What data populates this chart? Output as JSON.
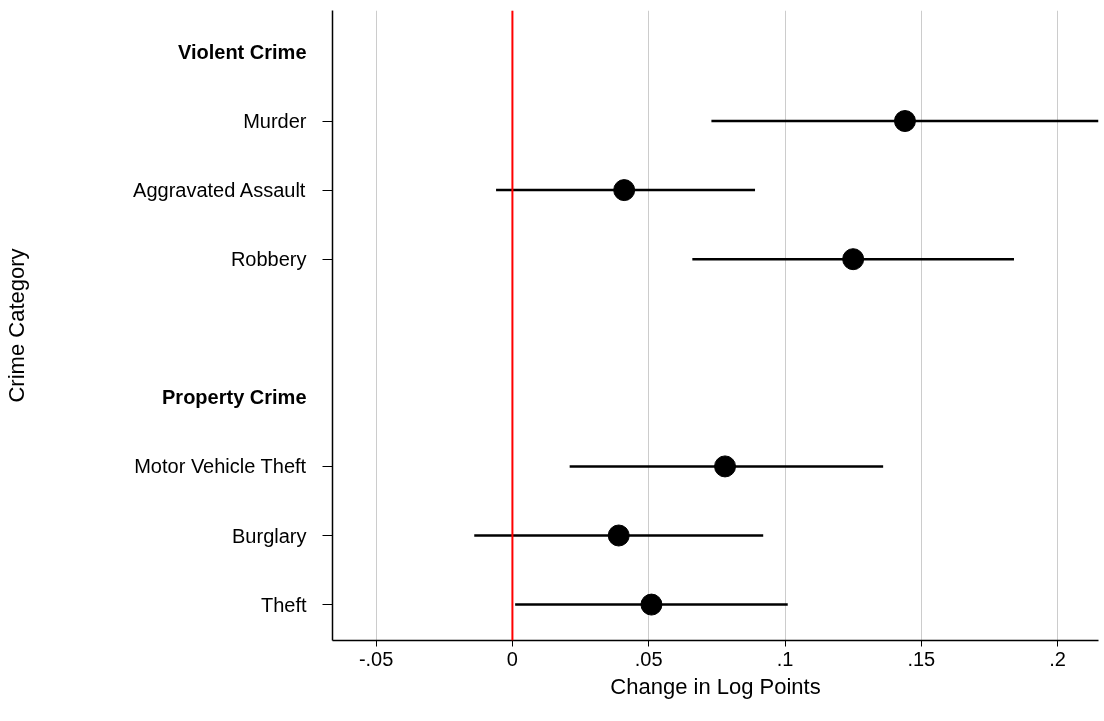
{
  "chart_data": {
    "type": "scatter",
    "orientation": "horizontal",
    "xlabel": "Change in Log Points",
    "ylabel": "Crime Category",
    "categories": [
      "Violent Crime",
      "Murder",
      "Aggravated Assault",
      "Robbery",
      null,
      "Property Crime",
      "Motor Vehicle Theft",
      "Burglary",
      "Theft"
    ],
    "series": [
      {
        "color": "#000000",
        "values": [
          null,
          0.144,
          0.041,
          0.125,
          null,
          null,
          0.078,
          0.039,
          0.051
        ],
        "errors": [
          null,
          [
            0.073,
            0.215
          ],
          [
            -0.006,
            0.089
          ],
          [
            0.066,
            0.184
          ],
          null,
          null,
          [
            0.021,
            0.136
          ],
          [
            -0.014,
            0.092
          ],
          [
            0.001,
            0.101
          ]
        ]
      }
    ],
    "xlim": [
      -0.066,
      0.215
    ],
    "xticks": [
      {
        "value": -0.05,
        "label": "-.05"
      },
      0,
      {
        "value": 0.05,
        "label": ".05"
      },
      {
        "value": 0.1,
        "label": ".1"
      },
      {
        "value": 0.15,
        "label": ".15"
      },
      {
        "value": 0.2,
        "label": ".2"
      }
    ],
    "grid": "x",
    "marker": "circle",
    "ref_lines": [
      {
        "axis": "x",
        "value": 0,
        "color": "#ff0000",
        "line_style": "solid"
      }
    ]
  }
}
